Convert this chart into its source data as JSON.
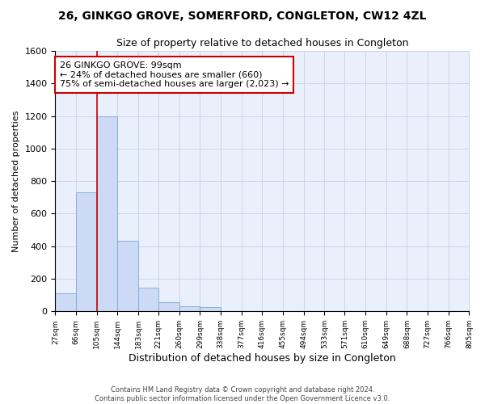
{
  "title": "26, GINKGO GROVE, SOMERFORD, CONGLETON, CW12 4ZL",
  "subtitle": "Size of property relative to detached houses in Congleton",
  "xlabel": "Distribution of detached houses by size in Congleton",
  "ylabel": "Number of detached properties",
  "bar_color": "#ccdaf5",
  "bar_edge_color": "#7aaad4",
  "background_color": "#eaf0fb",
  "grid_color": "#c5cfe8",
  "annotation_box_color": "#cc0000",
  "annotation_text": "26 GINKGO GROVE: 99sqm\n← 24% of detached houses are smaller (660)\n75% of semi-detached houses are larger (2,023) →",
  "property_line_x": 105,
  "footnote": "Contains HM Land Registry data © Crown copyright and database right 2024.\nContains public sector information licensed under the Open Government Licence v3.0.",
  "bin_edges": [
    27,
    66,
    105,
    144,
    183,
    221,
    260,
    299,
    338,
    377,
    416,
    455,
    494,
    533,
    571,
    610,
    649,
    688,
    727,
    766,
    805
  ],
  "bar_heights": [
    110,
    730,
    1200,
    435,
    148,
    57,
    33,
    25,
    0,
    0,
    0,
    0,
    0,
    0,
    0,
    0,
    0,
    0,
    0,
    0
  ],
  "ylim": [
    0,
    1600
  ],
  "yticks": [
    0,
    200,
    400,
    600,
    800,
    1000,
    1200,
    1400,
    1600
  ]
}
